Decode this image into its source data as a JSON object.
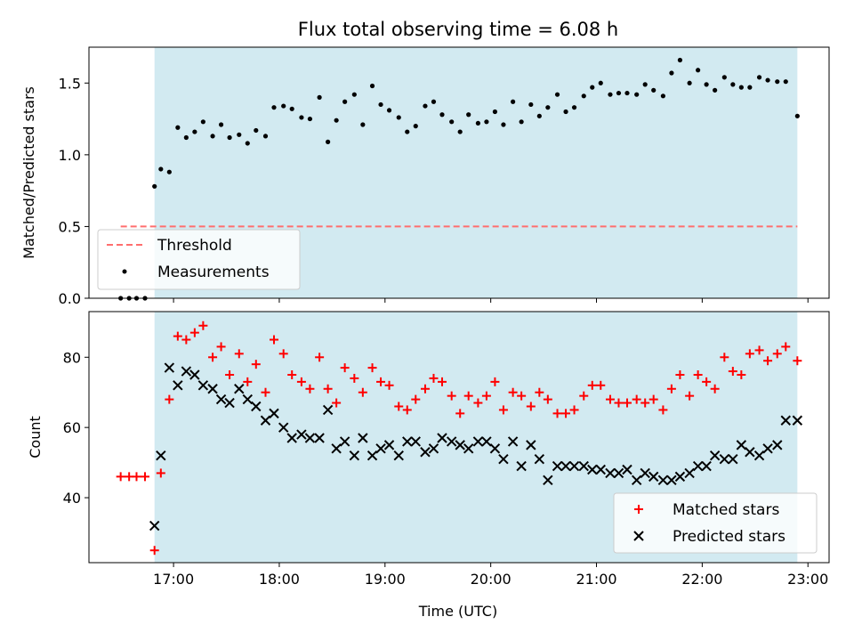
{
  "chart_data": {
    "title": "Flux total observing time = 6.08 h",
    "xlabel": "Time (UTC)",
    "x_unit": "hours UTC",
    "x_ticks": [
      "17:00",
      "18:00",
      "19:00",
      "20:00",
      "21:00",
      "22:00",
      "23:00"
    ],
    "observing_window": [
      16.82,
      22.9
    ],
    "colors": {
      "window_fill": "#add8e6",
      "threshold": "#ff6e6e",
      "matched": "#ff0000",
      "predicted": "#000000",
      "measurements": "#000000"
    },
    "panels": [
      {
        "type": "scatter",
        "ylabel": "Matched/Predicted stars",
        "ylim": [
          0,
          1.75
        ],
        "yticks": [
          "0.0",
          "0.5",
          "1.0",
          "1.5"
        ],
        "legend_position": "lower-left",
        "threshold": {
          "name": "Threshold",
          "value": 0.5,
          "x_range": [
            16.5,
            22.9
          ]
        },
        "series": [
          {
            "name": "Measurements",
            "marker": "dot",
            "x": [
              16.5,
              16.58,
              16.65,
              16.73,
              16.82,
              16.88,
              16.96,
              17.04,
              17.12,
              17.2,
              17.28,
              17.37,
              17.45,
              17.53,
              17.62,
              17.7,
              17.78,
              17.87,
              17.95,
              18.04,
              18.12,
              18.21,
              18.29,
              18.38,
              18.46,
              18.54,
              18.62,
              18.71,
              18.79,
              18.88,
              18.96,
              19.04,
              19.13,
              19.21,
              19.29,
              19.38,
              19.46,
              19.54,
              19.63,
              19.71,
              19.79,
              19.88,
              19.96,
              20.04,
              20.12,
              20.21,
              20.29,
              20.38,
              20.46,
              20.54,
              20.63,
              20.71,
              20.79,
              20.88,
              20.96,
              21.04,
              21.13,
              21.21,
              21.29,
              21.38,
              21.46,
              21.54,
              21.63,
              21.71,
              21.79,
              21.88,
              21.96,
              22.04,
              22.12,
              22.21,
              22.29,
              22.37,
              22.45,
              22.54,
              22.62,
              22.71,
              22.79,
              22.9
            ],
            "y": [
              0.0,
              0.0,
              0.0,
              0.0,
              0.78,
              0.9,
              0.88,
              1.19,
              1.12,
              1.16,
              1.23,
              1.13,
              1.21,
              1.12,
              1.14,
              1.08,
              1.17,
              1.13,
              1.33,
              1.34,
              1.32,
              1.26,
              1.25,
              1.4,
              1.09,
              1.24,
              1.37,
              1.42,
              1.21,
              1.48,
              1.35,
              1.31,
              1.26,
              1.16,
              1.2,
              1.34,
              1.37,
              1.28,
              1.23,
              1.16,
              1.28,
              1.22,
              1.23,
              1.3,
              1.21,
              1.37,
              1.23,
              1.35,
              1.27,
              1.33,
              1.42,
              1.3,
              1.33,
              1.41,
              1.47,
              1.5,
              1.42,
              1.43,
              1.43,
              1.42,
              1.49,
              1.45,
              1.41,
              1.57,
              1.66,
              1.5,
              1.59,
              1.49,
              1.45,
              1.54,
              1.49,
              1.47,
              1.47,
              1.54,
              1.52,
              1.51,
              1.51,
              1.27
            ]
          }
        ]
      },
      {
        "type": "scatter",
        "ylabel": "Count",
        "ylim": [
          21.5,
          93
        ],
        "yticks": [
          "40",
          "60",
          "80"
        ],
        "legend_position": "lower-right",
        "series": [
          {
            "name": "Matched stars",
            "marker": "plus",
            "x": [
              16.5,
              16.58,
              16.65,
              16.73,
              16.82,
              16.88,
              16.96,
              17.04,
              17.12,
              17.2,
              17.28,
              17.37,
              17.45,
              17.53,
              17.62,
              17.7,
              17.78,
              17.87,
              17.95,
              18.04,
              18.12,
              18.21,
              18.29,
              18.38,
              18.46,
              18.54,
              18.62,
              18.71,
              18.79,
              18.88,
              18.96,
              19.04,
              19.13,
              19.21,
              19.29,
              19.38,
              19.46,
              19.54,
              19.63,
              19.71,
              19.79,
              19.88,
              19.96,
              20.04,
              20.12,
              20.21,
              20.29,
              20.38,
              20.46,
              20.54,
              20.63,
              20.71,
              20.79,
              20.88,
              20.96,
              21.04,
              21.13,
              21.21,
              21.29,
              21.38,
              21.46,
              21.54,
              21.63,
              21.71,
              21.79,
              21.88,
              21.96,
              22.04,
              22.12,
              22.21,
              22.29,
              22.37,
              22.45,
              22.54,
              22.62,
              22.71,
              22.79,
              22.9
            ],
            "y": [
              46,
              46,
              46,
              46,
              25,
              47,
              68,
              86,
              85,
              87,
              89,
              80,
              83,
              75,
              81,
              73,
              78,
              70,
              85,
              81,
              75,
              73,
              71,
              80,
              71,
              67,
              77,
              74,
              70,
              77,
              73,
              72,
              66,
              65,
              68,
              71,
              74,
              73,
              69,
              64,
              69,
              67,
              69,
              73,
              65,
              70,
              69,
              66,
              70,
              68,
              64,
              64,
              65,
              69,
              72,
              72,
              68,
              67,
              67,
              68,
              67,
              68,
              65,
              71,
              75,
              69,
              75,
              73,
              71,
              80,
              76,
              75,
              81,
              82,
              79,
              81,
              83,
              79
            ]
          },
          {
            "name": "Predicted stars",
            "marker": "x",
            "x": [
              16.82,
              16.88,
              16.96,
              17.04,
              17.12,
              17.2,
              17.28,
              17.37,
              17.45,
              17.53,
              17.62,
              17.7,
              17.78,
              17.87,
              17.95,
              18.04,
              18.12,
              18.21,
              18.29,
              18.38,
              18.46,
              18.54,
              18.62,
              18.71,
              18.79,
              18.88,
              18.96,
              19.04,
              19.13,
              19.21,
              19.29,
              19.38,
              19.46,
              19.54,
              19.63,
              19.71,
              19.79,
              19.88,
              19.96,
              20.04,
              20.12,
              20.21,
              20.29,
              20.38,
              20.46,
              20.54,
              20.63,
              20.71,
              20.79,
              20.88,
              20.96,
              21.04,
              21.13,
              21.21,
              21.29,
              21.38,
              21.46,
              21.54,
              21.63,
              21.71,
              21.79,
              21.88,
              21.96,
              22.04,
              22.12,
              22.21,
              22.29,
              22.37,
              22.45,
              22.54,
              22.62,
              22.71,
              22.79,
              22.9
            ],
            "y": [
              32,
              52,
              77,
              72,
              76,
              75,
              72,
              71,
              68,
              67,
              71,
              68,
              66,
              62,
              64,
              60,
              57,
              58,
              57,
              57,
              65,
              54,
              56,
              52,
              57,
              52,
              54,
              55,
              52,
              56,
              56,
              53,
              54,
              57,
              56,
              55,
              54,
              56,
              56,
              54,
              51,
              56,
              49,
              55,
              51,
              45,
              49,
              49,
              49,
              49,
              48,
              48,
              47,
              47,
              48,
              45,
              47,
              46,
              45,
              45,
              46,
              47,
              49,
              49,
              52,
              51,
              51,
              55,
              53,
              52,
              54,
              55,
              62,
              62
            ]
          }
        ]
      }
    ]
  }
}
